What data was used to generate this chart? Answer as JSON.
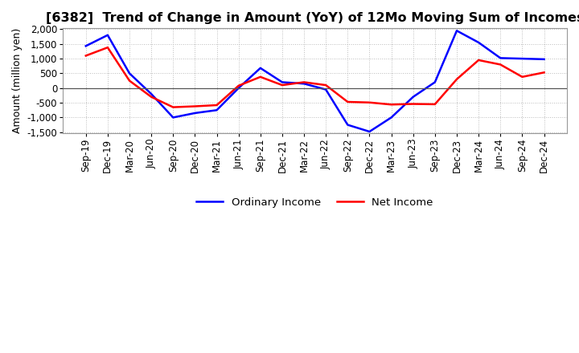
{
  "title": "[6382]  Trend of Change in Amount (YoY) of 12Mo Moving Sum of Incomes",
  "ylabel": "Amount (million yen)",
  "x_labels": [
    "Sep-19",
    "Dec-19",
    "Mar-20",
    "Jun-20",
    "Sep-20",
    "Dec-20",
    "Mar-21",
    "Jun-21",
    "Sep-21",
    "Dec-21",
    "Mar-22",
    "Jun-22",
    "Sep-22",
    "Dec-22",
    "Mar-23",
    "Jun-23",
    "Sep-23",
    "Dec-23",
    "Mar-24",
    "Jun-24",
    "Sep-24",
    "Dec-24"
  ],
  "ordinary_income": [
    1430,
    1800,
    500,
    -200,
    -1000,
    -850,
    -750,
    0,
    680,
    200,
    150,
    -50,
    -1250,
    -1480,
    -1000,
    -300,
    200,
    1950,
    1550,
    1020,
    1000,
    980
  ],
  "net_income": [
    1100,
    1380,
    250,
    -300,
    -650,
    -620,
    -580,
    80,
    380,
    100,
    200,
    100,
    -470,
    -490,
    -560,
    -540,
    -550,
    300,
    950,
    800,
    380,
    530
  ],
  "ylim": [
    -1500,
    2000
  ],
  "yticks": [
    -1500,
    -1000,
    -500,
    0,
    500,
    1000,
    1500,
    2000
  ],
  "ordinary_color": "#0000ff",
  "net_color": "#ff0000",
  "bg_color": "#ffffff",
  "grid_color": "#bbbbbb",
  "zero_line_color": "#555555",
  "title_fontsize": 11.5,
  "ylabel_fontsize": 9,
  "tick_fontsize": 8.5,
  "legend_fontsize": 9.5,
  "legend_labels": [
    "Ordinary Income",
    "Net Income"
  ]
}
